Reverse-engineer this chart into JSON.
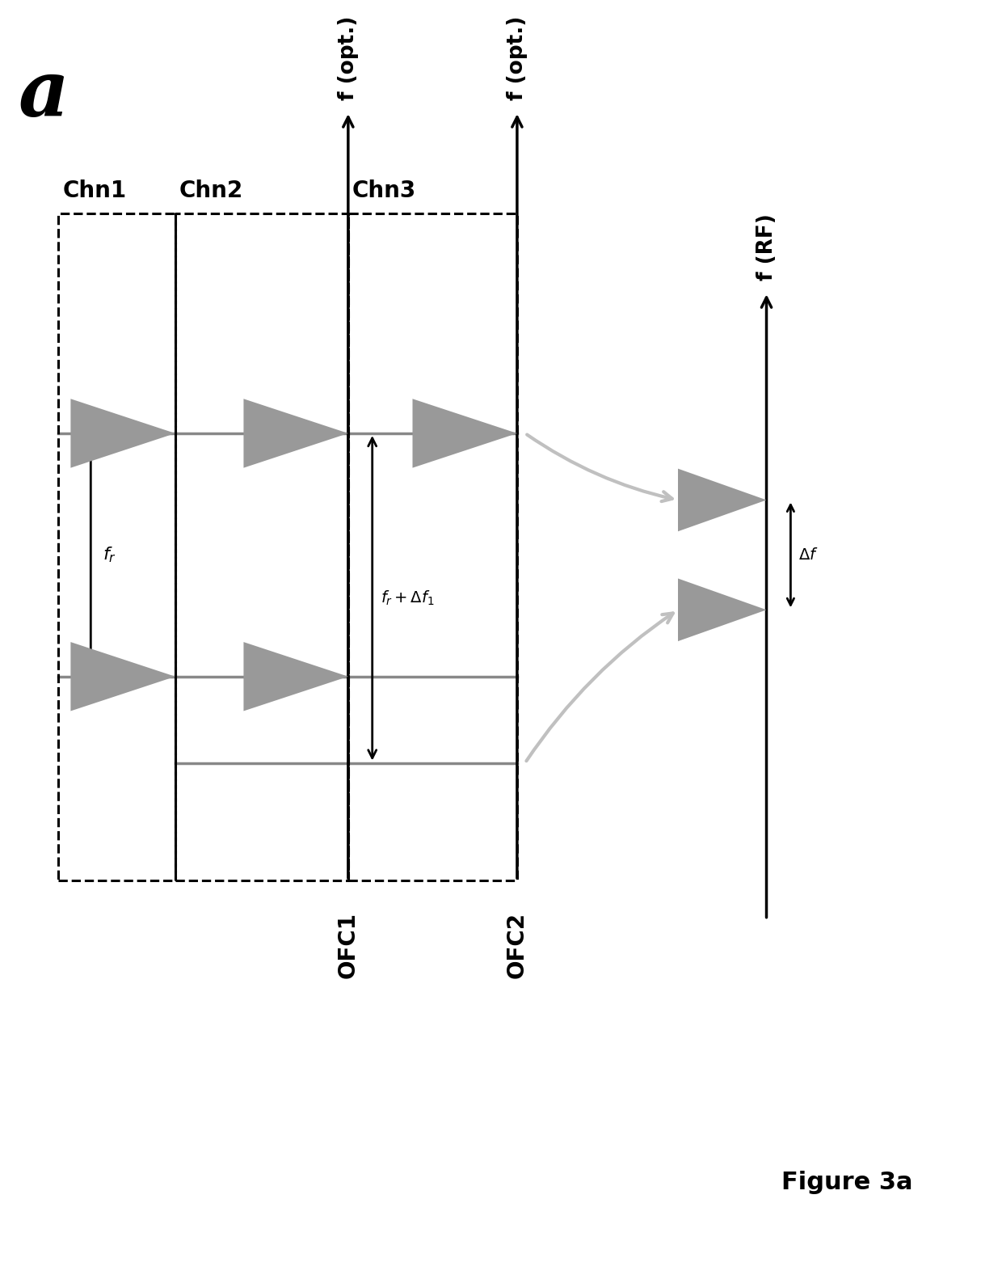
{
  "bg_color": "#ffffff",
  "fig_width": 12.4,
  "fig_height": 15.77,
  "label_a": "a",
  "label_a_fontsize": 70,
  "figure_label": "Figure 3a",
  "figure_label_fontsize": 22,
  "ofc1_label": "OFC1",
  "ofc2_label": "OFC2",
  "ofc_label_fontsize": 20,
  "chn_labels": [
    "Chn1",
    "Chn2",
    "Chn3"
  ],
  "chn_label_fontsize": 20,
  "fopt_label": "f (opt.)",
  "fopt_fontsize": 19,
  "frf_label": "f (RF)",
  "frf_fontsize": 19,
  "fr_label": "$f_r$",
  "fr_delta_label": "$f_r + \\Delta f_1$",
  "delta_f_label": "$\\Delta f$",
  "arrow_label_fontsize": 18,
  "gray_fill": "#999999",
  "ofc_line_color": "#888888",
  "dash_color": "#111111",
  "light_gray_arrow": "#c0c0c0"
}
